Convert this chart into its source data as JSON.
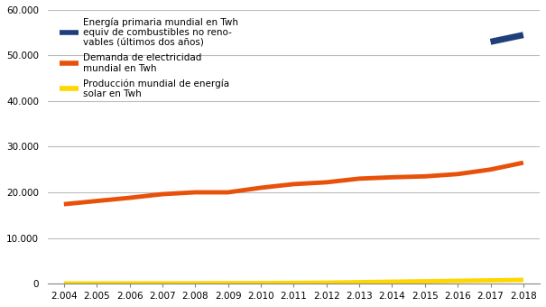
{
  "years": [
    2004,
    2005,
    2006,
    2007,
    2008,
    2009,
    2010,
    2011,
    2012,
    2013,
    2014,
    2015,
    2016,
    2017,
    2018
  ],
  "electricity_demand": [
    17400,
    18100,
    18800,
    19600,
    20000,
    20000,
    21000,
    21800,
    22200,
    23000,
    23300,
    23500,
    24000,
    25000,
    26500
  ],
  "solar_production": [
    20,
    30,
    40,
    50,
    60,
    80,
    100,
    150,
    200,
    300,
    400,
    500,
    600,
    700,
    800
  ],
  "primary_energy_2017": 53000,
  "primary_energy_2018": 54500,
  "electricity_color": "#E8510A",
  "solar_color": "#FFD700",
  "primary_color": "#1F3F7A",
  "legend_label_primary": "Energía primaria mundial en Twh\nequiv de combustibles no reno-\nvables (últimos dos años)",
  "legend_label_electricity": "Demanda de electricidad\nmundial en Twh",
  "legend_label_solar": "Producción mundial de energía\nsolar en Twh",
  "ylim": [
    0,
    60000
  ],
  "yticks": [
    0,
    10000,
    20000,
    30000,
    40000,
    50000,
    60000
  ],
  "ytick_labels": [
    "0",
    "10.000",
    "20.000",
    "30.000",
    "40.000",
    "50.000",
    "60.000"
  ],
  "xtick_labels": [
    "2.004",
    "2.005",
    "2.006",
    "2.007",
    "2.008",
    "2.009",
    "2.010",
    "2.011",
    "2.012",
    "2.013",
    "2.014",
    "2.015",
    "2.016",
    "2.017",
    "2.018"
  ],
  "background_color": "#FFFFFF",
  "grid_color": "#BBBBBB"
}
